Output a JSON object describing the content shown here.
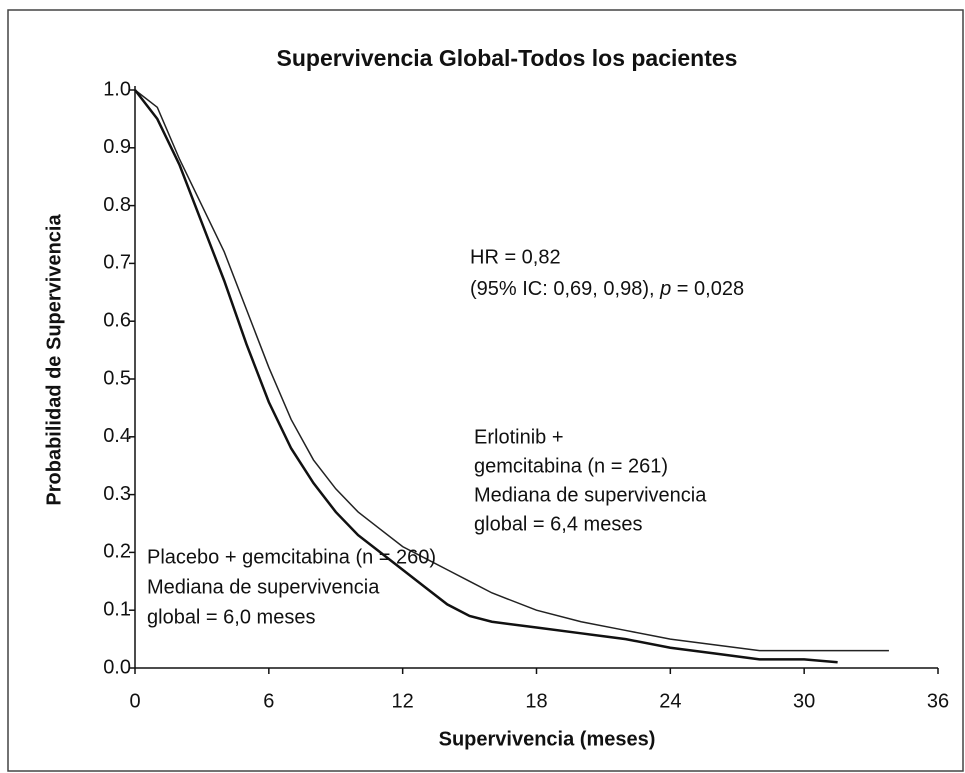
{
  "chart_data": {
    "type": "line",
    "title": "Supervivencia Global-Todos los pacientes",
    "x_label": "Supervivencia (meses)",
    "y_label": "Probabilidad de Supervivencia",
    "xlim": [
      0,
      36
    ],
    "xticks": [
      0,
      6,
      12,
      18,
      24,
      30,
      36
    ],
    "ylim": [
      0,
      1
    ],
    "yticks": [
      {
        "value": 0,
        "label": "0.0"
      },
      0.1,
      0.2,
      0.3,
      0.4,
      0.5,
      0.6,
      0.7,
      0.8,
      0.9,
      {
        "value": 1,
        "label": "1.0"
      }
    ],
    "series": [
      {
        "color": "#222222",
        "x": [
          0,
          1,
          2,
          3,
          4,
          5,
          6,
          7,
          8,
          9,
          10,
          11,
          12,
          13,
          14,
          15,
          16,
          18,
          20,
          22,
          24,
          26,
          28,
          30,
          31.5,
          33.8
        ],
        "values": [
          1.0,
          0.97,
          0.88,
          0.8,
          0.72,
          0.62,
          0.52,
          0.43,
          0.36,
          0.31,
          0.27,
          0.24,
          0.21,
          0.19,
          0.17,
          0.15,
          0.13,
          0.1,
          0.08,
          0.065,
          0.05,
          0.04,
          0.03,
          0.03,
          0.03,
          0.03
        ]
      },
      {
        "color": "#111111",
        "x": [
          0,
          1,
          2,
          3,
          4,
          5,
          6,
          7,
          8,
          9,
          10,
          11,
          12,
          13,
          14,
          15,
          16,
          18,
          20,
          22,
          24,
          26,
          28,
          30,
          31.5
        ],
        "values": [
          1.0,
          0.95,
          0.87,
          0.77,
          0.67,
          0.56,
          0.46,
          0.38,
          0.32,
          0.27,
          0.23,
          0.2,
          0.17,
          0.14,
          0.11,
          0.09,
          0.08,
          0.07,
          0.06,
          0.05,
          0.035,
          0.025,
          0.015,
          0.015,
          0.01
        ]
      }
    ],
    "annotations": {
      "hr": "HR = 0,82",
      "ci": [
        "(95% IC: 0,69, 0,98), ",
        "p",
        " = 0,028"
      ],
      "erlotinib": [
        "Erlotinib +",
        "gemcitabina (n = 261)",
        "Mediana de supervivencia",
        "global = 6,4 meses"
      ],
      "placebo": [
        "Placebo + gemcitabina (n = 260)",
        "Mediana de supervivencia",
        "global = 6,0 meses"
      ]
    }
  }
}
